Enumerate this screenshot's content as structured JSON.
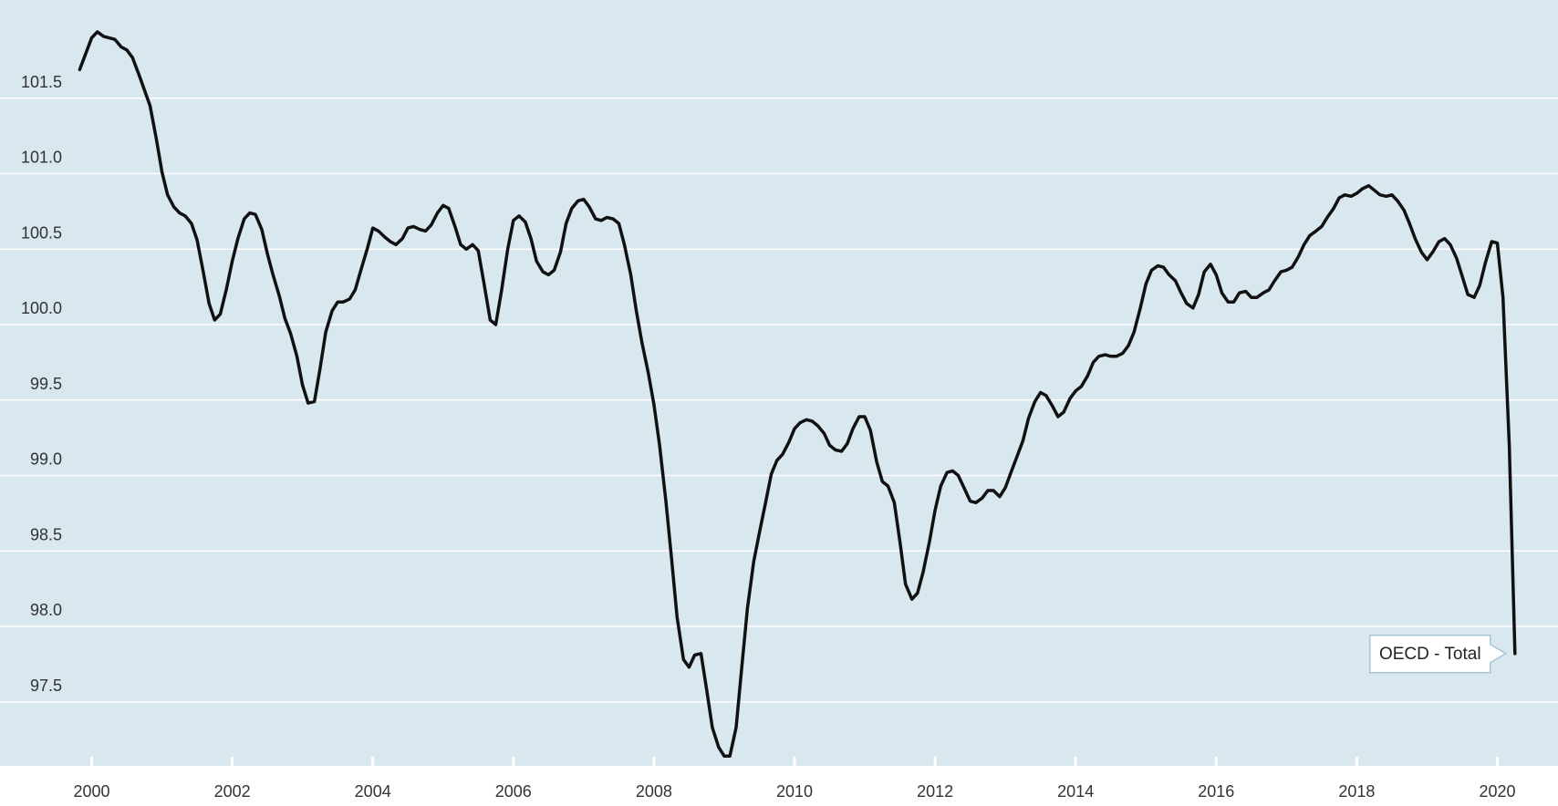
{
  "colors": {
    "plot_background": "#d9e7ef",
    "gridline": "#ffffff",
    "series_line": "#111111",
    "label_box_border": "#a8c4d6",
    "label_box_fill": "#ffffff"
  },
  "chart_data": {
    "type": "line",
    "title": "",
    "xlabel": "",
    "ylabel": "",
    "grid": "horizontal",
    "xlim": [
      1999.9,
      2020.25
    ],
    "ylim": [
      97.1,
      102.0
    ],
    "x_ticks": [
      "2000",
      "2002",
      "2004",
      "2006",
      "2008",
      "2010",
      "2012",
      "2014",
      "2016",
      "2018",
      "2020"
    ],
    "y_ticks": [
      "97.5",
      "98.0",
      "98.5",
      "99.0",
      "99.5",
      "100.0",
      "100.5",
      "101.0",
      "101.5"
    ],
    "series": [
      {
        "name": "OECD - Total",
        "label_position": "end-of-line",
        "points": [
          [
            1999.83,
            101.69
          ],
          [
            2000.0,
            101.9
          ],
          [
            2000.08,
            101.94
          ],
          [
            2000.17,
            101.91
          ],
          [
            2000.33,
            101.89
          ],
          [
            2000.42,
            101.84
          ],
          [
            2000.5,
            101.82
          ],
          [
            2000.58,
            101.77
          ],
          [
            2000.67,
            101.66
          ],
          [
            2000.83,
            101.45
          ],
          [
            2000.92,
            101.23
          ],
          [
            2001.0,
            101.01
          ],
          [
            2001.08,
            100.86
          ],
          [
            2001.17,
            100.78
          ],
          [
            2001.25,
            100.74
          ],
          [
            2001.33,
            100.72
          ],
          [
            2001.42,
            100.67
          ],
          [
            2001.5,
            100.56
          ],
          [
            2001.58,
            100.37
          ],
          [
            2001.67,
            100.14
          ],
          [
            2001.75,
            100.03
          ],
          [
            2001.83,
            100.07
          ],
          [
            2001.92,
            100.24
          ],
          [
            2002.0,
            100.42
          ],
          [
            2002.08,
            100.57
          ],
          [
            2002.17,
            100.7
          ],
          [
            2002.25,
            100.74
          ],
          [
            2002.33,
            100.73
          ],
          [
            2002.42,
            100.63
          ],
          [
            2002.5,
            100.47
          ],
          [
            2002.58,
            100.33
          ],
          [
            2002.67,
            100.19
          ],
          [
            2002.75,
            100.04
          ],
          [
            2002.83,
            99.94
          ],
          [
            2002.92,
            99.79
          ],
          [
            2003.0,
            99.6
          ],
          [
            2003.08,
            99.48
          ],
          [
            2003.17,
            99.49
          ],
          [
            2003.25,
            99.71
          ],
          [
            2003.33,
            99.95
          ],
          [
            2003.42,
            100.09
          ],
          [
            2003.5,
            100.15
          ],
          [
            2003.58,
            100.15
          ],
          [
            2003.67,
            100.17
          ],
          [
            2003.75,
            100.23
          ],
          [
            2003.83,
            100.36
          ],
          [
            2003.92,
            100.5
          ],
          [
            2004.0,
            100.64
          ],
          [
            2004.08,
            100.62
          ],
          [
            2004.17,
            100.58
          ],
          [
            2004.25,
            100.55
          ],
          [
            2004.33,
            100.53
          ],
          [
            2004.42,
            100.57
          ],
          [
            2004.5,
            100.64
          ],
          [
            2004.58,
            100.65
          ],
          [
            2004.67,
            100.63
          ],
          [
            2004.75,
            100.62
          ],
          [
            2004.83,
            100.66
          ],
          [
            2004.92,
            100.74
          ],
          [
            2005.0,
            100.79
          ],
          [
            2005.08,
            100.77
          ],
          [
            2005.17,
            100.65
          ],
          [
            2005.25,
            100.53
          ],
          [
            2005.33,
            100.5
          ],
          [
            2005.42,
            100.53
          ],
          [
            2005.5,
            100.49
          ],
          [
            2005.58,
            100.28
          ],
          [
            2005.67,
            100.03
          ],
          [
            2005.75,
            100.0
          ],
          [
            2005.83,
            100.22
          ],
          [
            2005.92,
            100.5
          ],
          [
            2006.0,
            100.69
          ],
          [
            2006.08,
            100.72
          ],
          [
            2006.17,
            100.68
          ],
          [
            2006.25,
            100.57
          ],
          [
            2006.33,
            100.42
          ],
          [
            2006.42,
            100.35
          ],
          [
            2006.5,
            100.33
          ],
          [
            2006.58,
            100.36
          ],
          [
            2006.67,
            100.48
          ],
          [
            2006.75,
            100.67
          ],
          [
            2006.83,
            100.77
          ],
          [
            2006.92,
            100.82
          ],
          [
            2007.0,
            100.83
          ],
          [
            2007.08,
            100.78
          ],
          [
            2007.17,
            100.7
          ],
          [
            2007.25,
            100.69
          ],
          [
            2007.33,
            100.71
          ],
          [
            2007.42,
            100.7
          ],
          [
            2007.5,
            100.67
          ],
          [
            2007.58,
            100.53
          ],
          [
            2007.67,
            100.33
          ],
          [
            2007.75,
            100.09
          ],
          [
            2007.83,
            99.88
          ],
          [
            2007.92,
            99.68
          ],
          [
            2008.0,
            99.47
          ],
          [
            2008.08,
            99.2
          ],
          [
            2008.17,
            98.83
          ],
          [
            2008.25,
            98.45
          ],
          [
            2008.33,
            98.06
          ],
          [
            2008.42,
            97.78
          ],
          [
            2008.5,
            97.73
          ],
          [
            2008.58,
            97.81
          ],
          [
            2008.67,
            97.82
          ],
          [
            2008.75,
            97.58
          ],
          [
            2008.83,
            97.33
          ],
          [
            2008.92,
            97.2
          ],
          [
            2009.0,
            97.14
          ],
          [
            2009.08,
            97.14
          ],
          [
            2009.17,
            97.33
          ],
          [
            2009.25,
            97.73
          ],
          [
            2009.33,
            98.12
          ],
          [
            2009.42,
            98.43
          ],
          [
            2009.5,
            98.62
          ],
          [
            2009.58,
            98.8
          ],
          [
            2009.67,
            99.01
          ],
          [
            2009.75,
            99.1
          ],
          [
            2009.83,
            99.14
          ],
          [
            2009.92,
            99.22
          ],
          [
            2010.0,
            99.31
          ],
          [
            2010.08,
            99.35
          ],
          [
            2010.17,
            99.37
          ],
          [
            2010.25,
            99.36
          ],
          [
            2010.33,
            99.33
          ],
          [
            2010.42,
            99.28
          ],
          [
            2010.5,
            99.2
          ],
          [
            2010.58,
            99.17
          ],
          [
            2010.67,
            99.16
          ],
          [
            2010.75,
            99.21
          ],
          [
            2010.83,
            99.31
          ],
          [
            2010.92,
            99.39
          ],
          [
            2011.0,
            99.39
          ],
          [
            2011.08,
            99.3
          ],
          [
            2011.17,
            99.09
          ],
          [
            2011.25,
            98.96
          ],
          [
            2011.33,
            98.93
          ],
          [
            2011.42,
            98.82
          ],
          [
            2011.5,
            98.56
          ],
          [
            2011.58,
            98.28
          ],
          [
            2011.67,
            98.18
          ],
          [
            2011.75,
            98.22
          ],
          [
            2011.83,
            98.36
          ],
          [
            2011.92,
            98.56
          ],
          [
            2012.0,
            98.77
          ],
          [
            2012.08,
            98.93
          ],
          [
            2012.17,
            99.02
          ],
          [
            2012.25,
            99.03
          ],
          [
            2012.33,
            99.0
          ],
          [
            2012.42,
            98.91
          ],
          [
            2012.5,
            98.83
          ],
          [
            2012.58,
            98.82
          ],
          [
            2012.67,
            98.85
          ],
          [
            2012.75,
            98.9
          ],
          [
            2012.83,
            98.9
          ],
          [
            2012.92,
            98.86
          ],
          [
            2013.0,
            98.92
          ],
          [
            2013.08,
            99.02
          ],
          [
            2013.17,
            99.13
          ],
          [
            2013.25,
            99.23
          ],
          [
            2013.33,
            99.38
          ],
          [
            2013.42,
            99.49
          ],
          [
            2013.5,
            99.55
          ],
          [
            2013.58,
            99.53
          ],
          [
            2013.67,
            99.46
          ],
          [
            2013.75,
            99.39
          ],
          [
            2013.83,
            99.42
          ],
          [
            2013.92,
            99.51
          ],
          [
            2014.0,
            99.56
          ],
          [
            2014.08,
            99.59
          ],
          [
            2014.17,
            99.66
          ],
          [
            2014.25,
            99.75
          ],
          [
            2014.33,
            99.79
          ],
          [
            2014.42,
            99.8
          ],
          [
            2014.5,
            99.79
          ],
          [
            2014.58,
            99.79
          ],
          [
            2014.67,
            99.81
          ],
          [
            2014.75,
            99.86
          ],
          [
            2014.83,
            99.95
          ],
          [
            2014.92,
            100.11
          ],
          [
            2015.0,
            100.27
          ],
          [
            2015.08,
            100.36
          ],
          [
            2015.17,
            100.39
          ],
          [
            2015.25,
            100.38
          ],
          [
            2015.33,
            100.33
          ],
          [
            2015.42,
            100.29
          ],
          [
            2015.5,
            100.21
          ],
          [
            2015.58,
            100.14
          ],
          [
            2015.67,
            100.11
          ],
          [
            2015.75,
            100.2
          ],
          [
            2015.83,
            100.35
          ],
          [
            2015.92,
            100.4
          ],
          [
            2016.0,
            100.33
          ],
          [
            2016.08,
            100.21
          ],
          [
            2016.17,
            100.15
          ],
          [
            2016.25,
            100.15
          ],
          [
            2016.33,
            100.21
          ],
          [
            2016.42,
            100.22
          ],
          [
            2016.5,
            100.18
          ],
          [
            2016.58,
            100.18
          ],
          [
            2016.67,
            100.21
          ],
          [
            2016.75,
            100.23
          ],
          [
            2016.83,
            100.29
          ],
          [
            2016.92,
            100.35
          ],
          [
            2017.0,
            100.36
          ],
          [
            2017.08,
            100.38
          ],
          [
            2017.17,
            100.45
          ],
          [
            2017.25,
            100.53
          ],
          [
            2017.33,
            100.59
          ],
          [
            2017.42,
            100.62
          ],
          [
            2017.5,
            100.65
          ],
          [
            2017.58,
            100.71
          ],
          [
            2017.67,
            100.77
          ],
          [
            2017.75,
            100.84
          ],
          [
            2017.83,
            100.86
          ],
          [
            2017.92,
            100.85
          ],
          [
            2018.0,
            100.87
          ],
          [
            2018.08,
            100.9
          ],
          [
            2018.17,
            100.92
          ],
          [
            2018.25,
            100.89
          ],
          [
            2018.33,
            100.86
          ],
          [
            2018.42,
            100.85
          ],
          [
            2018.5,
            100.86
          ],
          [
            2018.58,
            100.82
          ],
          [
            2018.67,
            100.76
          ],
          [
            2018.75,
            100.67
          ],
          [
            2018.83,
            100.57
          ],
          [
            2018.92,
            100.48
          ],
          [
            2019.0,
            100.43
          ],
          [
            2019.08,
            100.48
          ],
          [
            2019.17,
            100.55
          ],
          [
            2019.25,
            100.57
          ],
          [
            2019.33,
            100.53
          ],
          [
            2019.42,
            100.44
          ],
          [
            2019.5,
            100.32
          ],
          [
            2019.58,
            100.2
          ],
          [
            2019.67,
            100.18
          ],
          [
            2019.75,
            100.26
          ],
          [
            2019.83,
            100.41
          ],
          [
            2019.92,
            100.55
          ],
          [
            2020.0,
            100.54
          ],
          [
            2020.08,
            100.18
          ],
          [
            2020.17,
            99.2
          ],
          [
            2020.25,
            97.82
          ]
        ]
      }
    ]
  }
}
